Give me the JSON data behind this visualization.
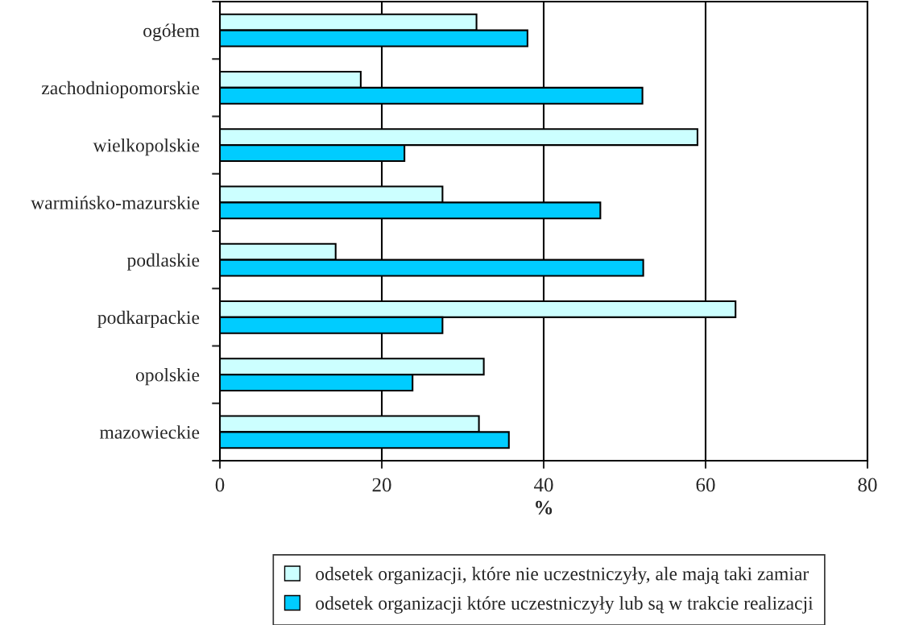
{
  "chart_data": {
    "type": "bar",
    "orientation": "horizontal",
    "xlabel": "%",
    "categories": [
      "ogółem",
      "zachodniopomorskie",
      "wielkopolskie",
      "warmińsko-mazurskie",
      "podlaskie",
      "podkarpackie",
      "opolskie",
      "mazowieckie"
    ],
    "series": [
      {
        "name": "odsetek organizacji, które nie uczestniczyły, ale mają taki zamiar",
        "color": "#ccffff",
        "values": [
          31.7,
          17.4,
          59.0,
          27.5,
          14.3,
          63.7,
          32.6,
          32.0
        ]
      },
      {
        "name": "odsetek organizacji które uczestniczyły lub są w trakcie realizacji",
        "color": "#00ccff",
        "values": [
          38.0,
          52.2,
          22.8,
          47.0,
          52.3,
          27.5,
          23.8,
          35.7
        ]
      }
    ],
    "xlim": [
      0,
      80
    ],
    "xticks": [
      0,
      20,
      40,
      60,
      80
    ],
    "grid": "x",
    "legend": "bottom"
  }
}
